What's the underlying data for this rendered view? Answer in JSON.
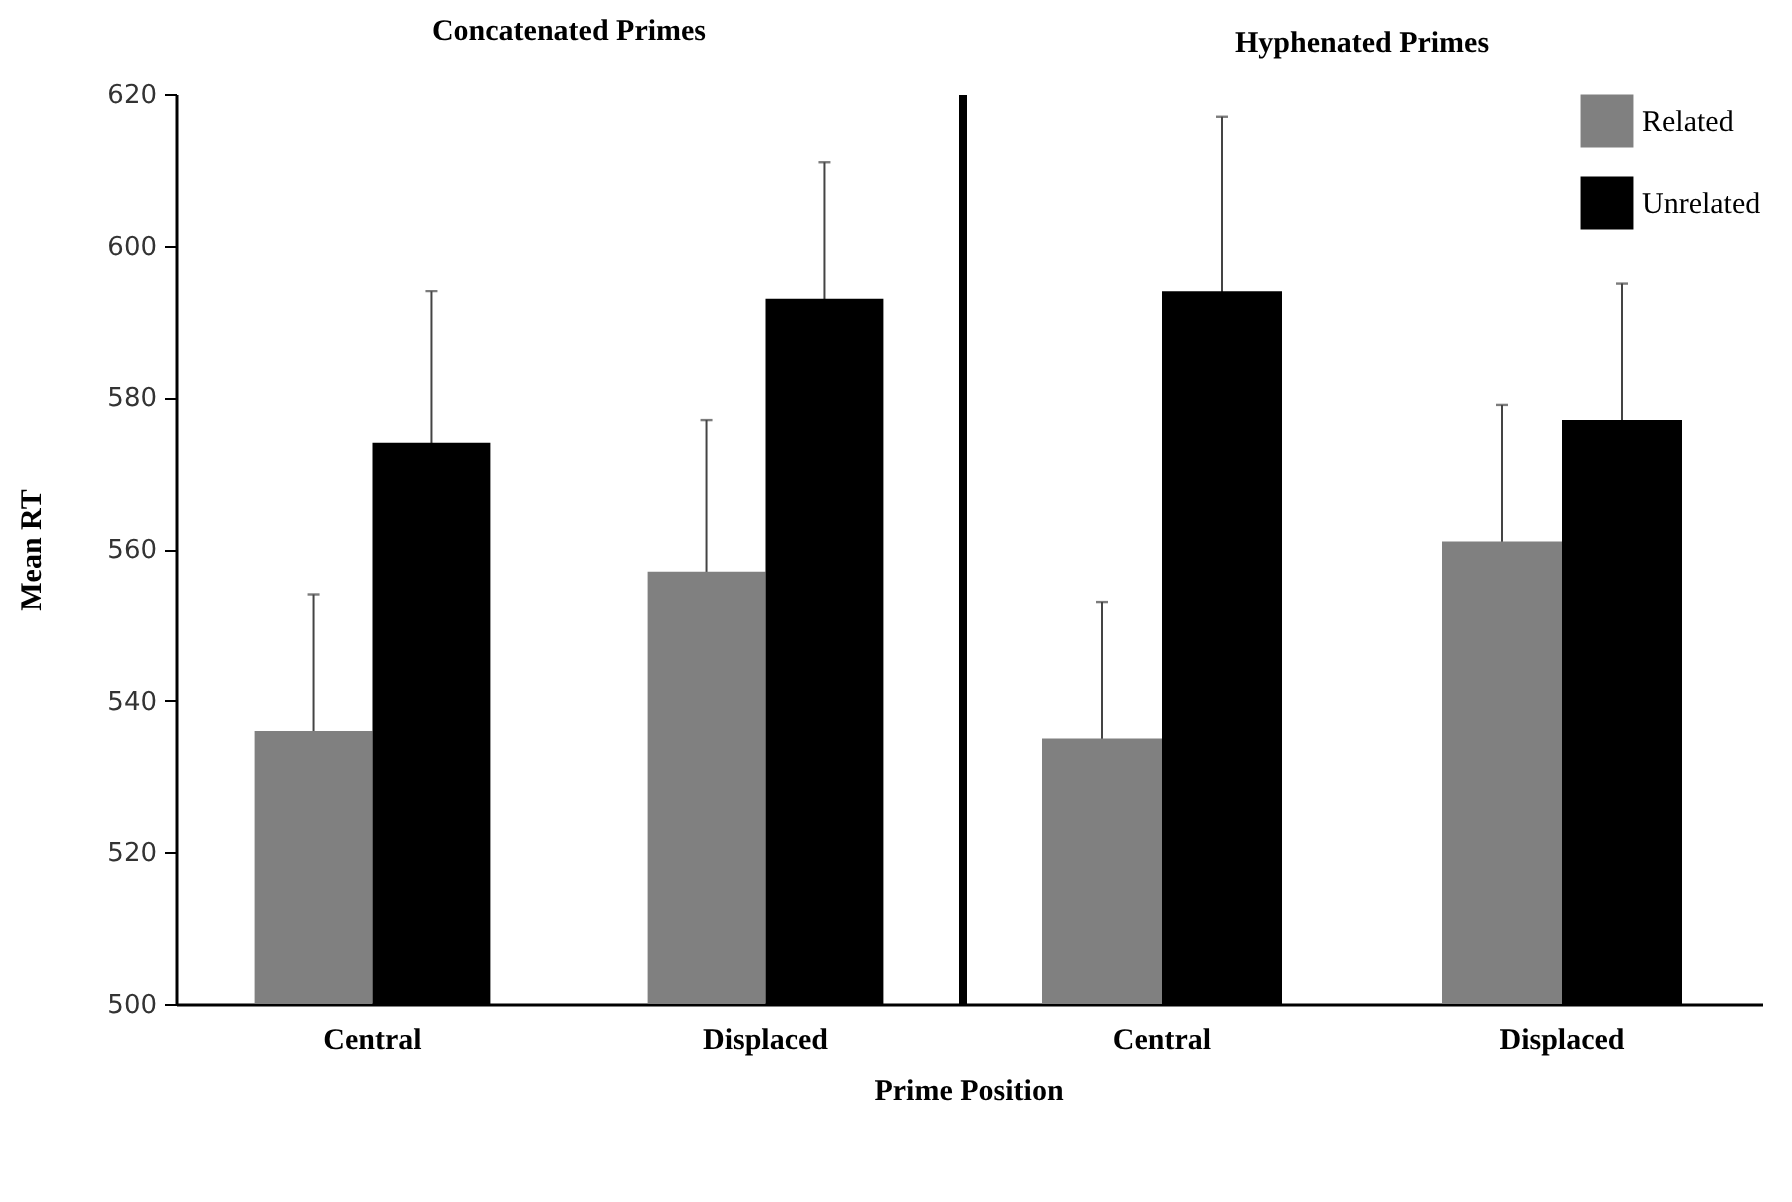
{
  "chart_data": [
    {
      "type": "bar",
      "title": "Concatenated Primes",
      "ylabel": "Mean RT",
      "xlabel": "Prime Position",
      "categories": [
        "Central",
        "Displaced"
      ],
      "ylim": [
        500,
        620
      ],
      "yticks": [
        500,
        520,
        540,
        560,
        580,
        600,
        620
      ],
      "grid": false,
      "legend": false,
      "series": [
        {
          "color": "#808080",
          "values": [
            536,
            557
          ],
          "errors": [
            18,
            20
          ]
        },
        {
          "color": "#000000",
          "values": [
            574,
            593
          ],
          "errors": [
            20,
            18
          ]
        }
      ]
    },
    {
      "type": "bar",
      "title": "Hyphenated Primes",
      "categories": [
        "Central",
        "Displaced"
      ],
      "ylim": [
        500,
        620
      ],
      "yticks": [
        500,
        520,
        540,
        560,
        580,
        600,
        620
      ],
      "grid": false,
      "legend": "top right",
      "tick_labels": "x",
      "series": [
        {
          "name": "Related",
          "color": "#808080",
          "values": [
            535,
            561
          ],
          "errors": [
            18,
            18
          ]
        },
        {
          "name": "Unrelated",
          "color": "#000000",
          "values": [
            594,
            577
          ],
          "errors": [
            23,
            18
          ]
        }
      ]
    }
  ]
}
